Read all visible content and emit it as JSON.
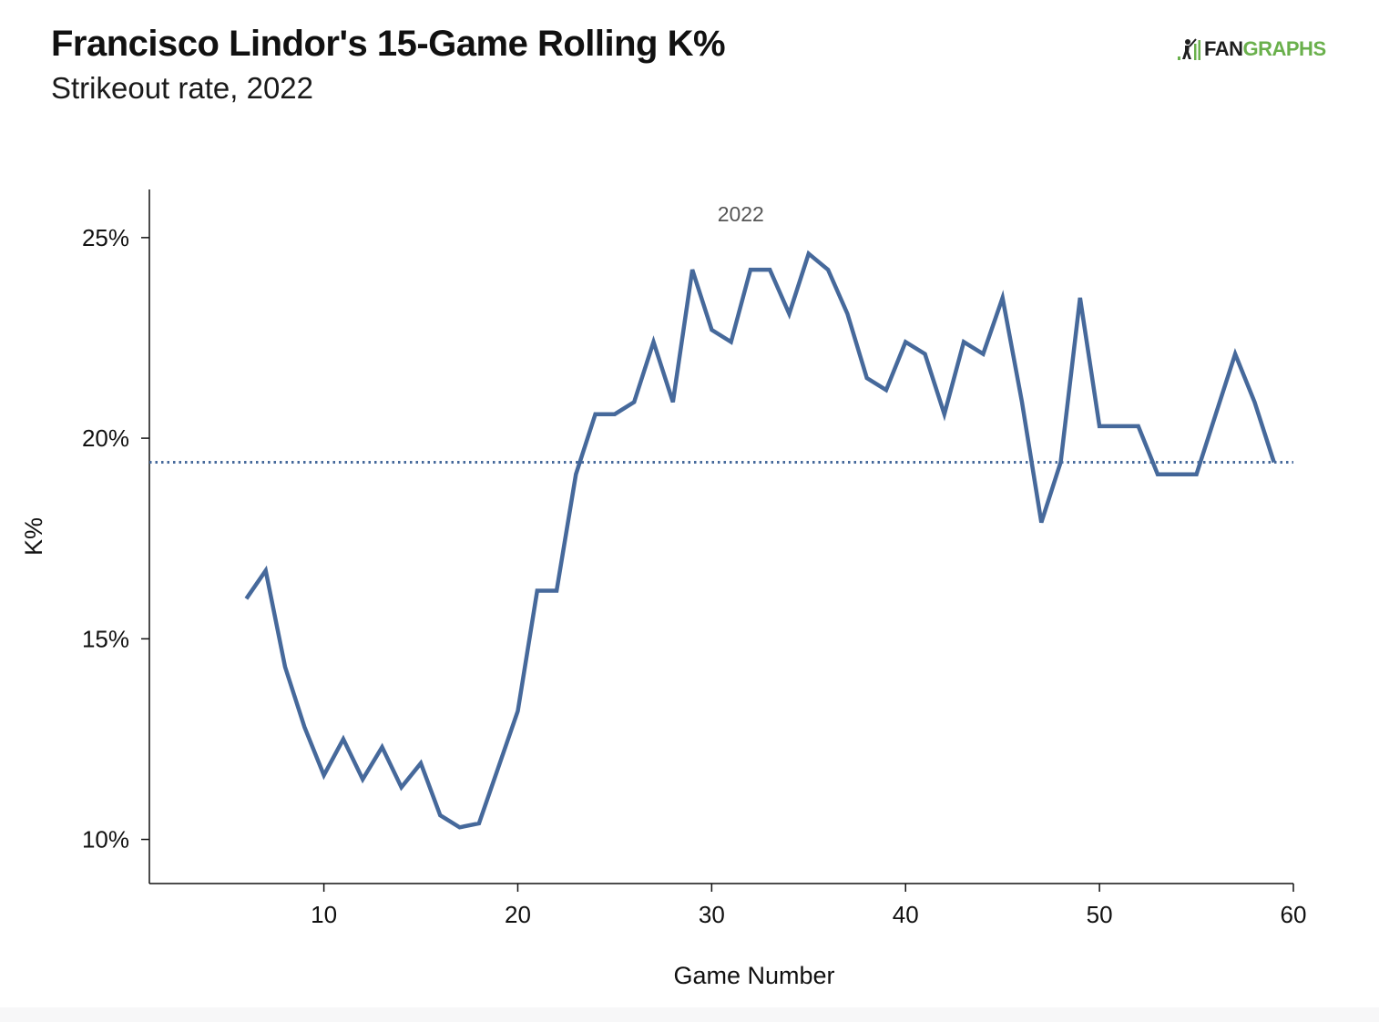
{
  "header": {
    "title": "Francisco Lindor's 15-Game Rolling K%",
    "subtitle": "Strikeout rate, 2022"
  },
  "logo": {
    "text_part1": "FAN",
    "text_part2": "GRAPHS",
    "color_dark": "#1f1f1f",
    "color_green": "#6ab04c"
  },
  "chart_data": {
    "type": "line",
    "title": "Francisco Lindor's 15-Game Rolling K%",
    "subtitle": "Strikeout rate, 2022",
    "xlabel": "Game Number",
    "ylabel": "K%",
    "xlim": [
      1,
      60
    ],
    "ylim": [
      8.9,
      26.2
    ],
    "x_ticks": [
      10,
      20,
      30,
      40,
      50,
      60
    ],
    "y_ticks": [
      10,
      15,
      20,
      25
    ],
    "y_tick_suffix": "%",
    "grid": false,
    "series_color": "#46699b",
    "series_label": "2022",
    "series_label_position": [
      31.5,
      25.4
    ],
    "series": [
      {
        "name": "2022",
        "x": [
          6,
          7,
          8,
          9,
          10,
          11,
          12,
          13,
          14,
          15,
          16,
          17,
          18,
          19,
          20,
          21,
          22,
          23,
          24,
          25,
          26,
          27,
          28,
          29,
          30,
          31,
          32,
          33,
          34,
          35,
          36,
          37,
          38,
          39,
          40,
          41,
          42,
          43,
          44,
          45,
          46,
          47,
          48,
          49,
          50,
          51,
          52,
          53,
          54,
          55,
          56,
          57,
          58,
          59
        ],
        "values": [
          16.0,
          16.7,
          14.3,
          12.8,
          11.6,
          12.5,
          11.5,
          12.3,
          11.3,
          11.9,
          10.6,
          10.3,
          10.4,
          11.8,
          13.2,
          16.2,
          16.2,
          19.1,
          20.6,
          20.6,
          20.9,
          22.4,
          20.9,
          24.2,
          22.7,
          22.4,
          24.2,
          24.2,
          23.1,
          24.6,
          24.2,
          23.1,
          21.5,
          21.2,
          22.4,
          22.1,
          20.6,
          22.4,
          22.1,
          23.5,
          20.9,
          17.9,
          19.4,
          23.5,
          20.3,
          20.3,
          20.3,
          19.1,
          19.1,
          19.1,
          20.6,
          22.1,
          20.9,
          19.4
        ]
      }
    ],
    "reference_line": {
      "y": 19.4,
      "style": "dotted",
      "color": "#46699b"
    }
  }
}
